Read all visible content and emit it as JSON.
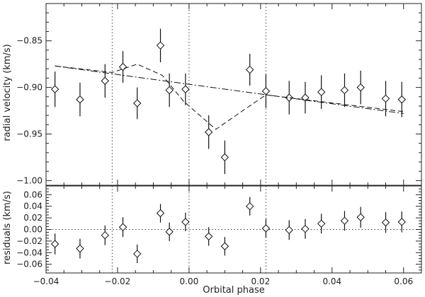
{
  "chart_data": [
    {
      "type": "scatter",
      "title": "",
      "xlabel": "",
      "ylabel": "radial velocity (km/s)",
      "xlim": [
        -0.04,
        0.065
      ],
      "ylim": [
        -1.005,
        -0.81
      ],
      "x_ticks": [
        -0.04,
        -0.02,
        0.0,
        0.02,
        0.04,
        0.06
      ],
      "x_tick_labels": [
        "",
        "",
        "",
        "",
        "",
        ""
      ],
      "y_ticks": [
        -1.0,
        -0.95,
        -0.9,
        -0.85
      ],
      "y_tick_labels": [
        "−1.00",
        "−0.95",
        "−0.90",
        "−0.85"
      ],
      "vertical_lines": [
        -0.0215,
        0.0,
        0.0215
      ],
      "series": [
        {
          "marker": "diamond",
          "x": [
            -0.0375,
            -0.0305,
            -0.0235,
            -0.0185,
            -0.0145,
            -0.008,
            -0.0055,
            -0.001,
            0.0055,
            0.01,
            0.017,
            0.0215,
            0.028,
            0.0325,
            0.037,
            0.0435,
            0.048,
            0.055,
            0.0595
          ],
          "y": [
            -0.902,
            -0.913,
            -0.893,
            -0.878,
            -0.917,
            -0.855,
            -0.903,
            -0.902,
            -0.948,
            -0.975,
            -0.881,
            -0.904,
            -0.911,
            -0.911,
            -0.905,
            -0.903,
            -0.9,
            -0.912,
            -0.913
          ],
          "yerr": [
            0.019,
            0.018,
            0.018,
            0.017,
            0.017,
            0.018,
            0.018,
            0.017,
            0.018,
            0.018,
            0.017,
            0.018,
            0.018,
            0.017,
            0.018,
            0.018,
            0.018,
            0.019,
            0.019
          ]
        },
        {
          "style": "dashed",
          "x": [
            -0.0375,
            -0.0215,
            -0.0145,
            -0.0075,
            -0.0015,
            0.0075,
            0.015,
            0.0215,
            0.06
          ],
          "y": [
            -0.877,
            -0.884,
            -0.875,
            -0.887,
            -0.915,
            -0.945,
            -0.925,
            -0.908,
            -0.926
          ]
        },
        {
          "style": "dash-dot",
          "x": [
            -0.0375,
            0.06
          ],
          "y": [
            -0.877,
            -0.928
          ]
        }
      ]
    },
    {
      "type": "scatter",
      "title": "",
      "xlabel": "Orbital phase",
      "ylabel": "residuals (km/s)",
      "xlim": [
        -0.04,
        0.065
      ],
      "ylim": [
        -0.075,
        0.075
      ],
      "x_ticks": [
        -0.04,
        -0.02,
        0.0,
        0.02,
        0.04,
        0.06
      ],
      "x_tick_labels": [
        "−0.04",
        "−0.02",
        "0.00",
        "0.02",
        "0.04",
        "0.06"
      ],
      "y_ticks": [
        -0.06,
        -0.04,
        -0.02,
        0.0,
        0.02,
        0.04,
        0.06
      ],
      "y_tick_labels": [
        "−0.06",
        "−0.04",
        "−0.02",
        "0.00",
        "0.02",
        "0.04",
        "0.06"
      ],
      "horizontal_lines": [
        0.0
      ],
      "vertical_lines": [
        -0.0215,
        0.0,
        0.0215
      ],
      "series": [
        {
          "marker": "diamond",
          "x": [
            -0.0375,
            -0.0305,
            -0.0235,
            -0.0185,
            -0.0145,
            -0.008,
            -0.0055,
            -0.001,
            0.0055,
            0.01,
            0.017,
            0.0215,
            0.028,
            0.0325,
            0.037,
            0.0435,
            0.048,
            0.055,
            0.0595
          ],
          "y": [
            -0.025,
            -0.033,
            -0.01,
            0.004,
            -0.042,
            0.028,
            -0.004,
            0.013,
            -0.012,
            -0.029,
            0.04,
            0.002,
            -0.001,
            0.001,
            0.01,
            0.015,
            0.021,
            0.012,
            0.013
          ],
          "yerr": [
            0.018,
            0.017,
            0.017,
            0.017,
            0.016,
            0.016,
            0.016,
            0.016,
            0.016,
            0.016,
            0.016,
            0.016,
            0.017,
            0.017,
            0.017,
            0.017,
            0.018,
            0.018,
            0.018
          ]
        }
      ]
    }
  ]
}
